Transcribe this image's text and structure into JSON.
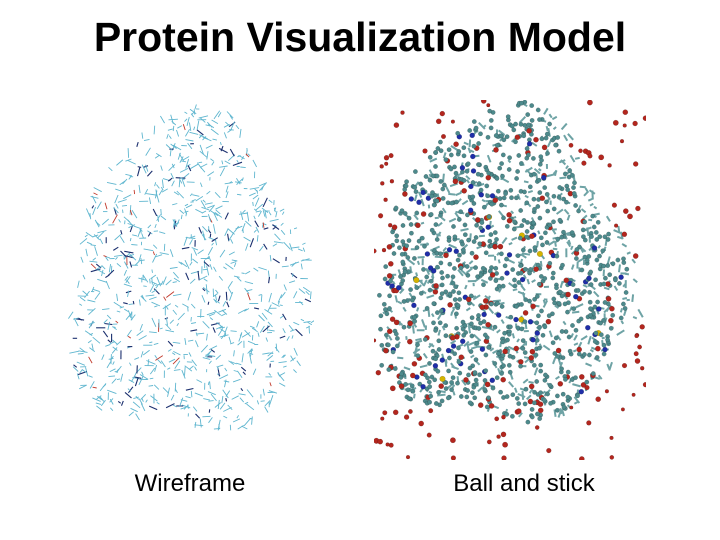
{
  "title": "Protein Visualization Model",
  "panels": [
    {
      "caption": "Wireframe",
      "style": "wireframe",
      "colors": {
        "bond": "#5fb6cf",
        "dark": "#1b2f6e",
        "accent": "#c0392b"
      }
    },
    {
      "caption": "Ball and stick",
      "style": "ball-and-stick",
      "colors": {
        "carbon": "#4d8a8c",
        "oxygen": "#b3261e",
        "nitrogen": "#1f2ea8",
        "sulfur": "#d4b400"
      }
    }
  ]
}
